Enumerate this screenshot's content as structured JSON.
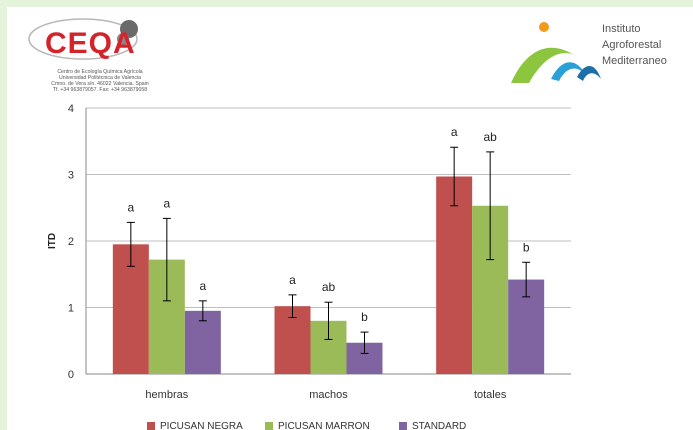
{
  "header": {
    "left_logo_text": "CEQA",
    "left_logo_sub": [
      "Centro de Ecología Química Agrícola",
      "Universidad Politécnica de Valencia",
      "Cmno. de Vera s/n. 46022 Valencia. Spain",
      "Tf. +34 963879057. Fax: +34 963879058"
    ],
    "right_logo_lines": [
      "Instituto",
      "Agroforestal",
      "Mediterraneo"
    ]
  },
  "chart_data": {
    "type": "bar",
    "categories": [
      "hembras",
      "machos",
      "totales"
    ],
    "series": [
      {
        "name": "PICUSAN NEGRA",
        "color": "#c0504d",
        "values": [
          1.95,
          1.02,
          2.97
        ],
        "errors": [
          0.33,
          0.17,
          0.44
        ],
        "labels": [
          "a",
          "a",
          "a"
        ]
      },
      {
        "name": "PICUSAN MARRON",
        "color": "#9bbb59",
        "values": [
          1.72,
          0.8,
          2.53
        ],
        "errors": [
          0.62,
          0.28,
          0.81
        ],
        "labels": [
          "a",
          "ab",
          "ab"
        ]
      },
      {
        "name": "STANDARD",
        "color": "#8064a2",
        "values": [
          0.95,
          0.47,
          1.42
        ],
        "errors": [
          0.15,
          0.16,
          0.26
        ],
        "labels": [
          "a",
          "b",
          "b"
        ]
      }
    ],
    "ylabel": "ITD",
    "ylim": [
      0,
      4
    ],
    "yticks": [
      0,
      1,
      2,
      3,
      4
    ],
    "grid": true,
    "legend_position": "bottom"
  }
}
